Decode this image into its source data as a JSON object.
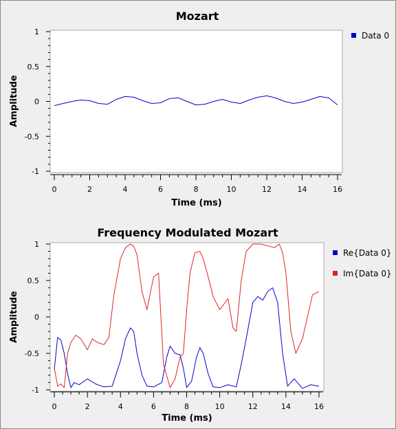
{
  "chart_data": [
    {
      "type": "line",
      "title": "Mozart",
      "xlabel": "Time (ms)",
      "ylabel": "Amplitude",
      "xlim": [
        0,
        16
      ],
      "ylim": [
        -1,
        1
      ],
      "x_ticks": [
        "0",
        "2",
        "4",
        "6",
        "8",
        "10",
        "12",
        "14",
        "16"
      ],
      "y_ticks": [
        "1",
        "0.5",
        "0",
        "-0.5",
        "-1"
      ],
      "legend_position": "right",
      "series": [
        {
          "name": "Data 0",
          "color": "#0000cc",
          "x": [
            0,
            0.5,
            1,
            1.5,
            2,
            2.5,
            3,
            3.5,
            4,
            4.5,
            5,
            5.5,
            6,
            6.5,
            7,
            7.5,
            8,
            8.5,
            9,
            9.5,
            10,
            10.5,
            11,
            11.5,
            12,
            12.5,
            13,
            13.5,
            14,
            14.5,
            15,
            15.5,
            16
          ],
          "y": [
            -0.06,
            -0.03,
            0.0,
            0.02,
            0.01,
            -0.03,
            -0.04,
            0.03,
            0.07,
            0.06,
            0.01,
            -0.03,
            -0.02,
            0.04,
            0.05,
            0.0,
            -0.05,
            -0.04,
            0.0,
            0.03,
            -0.01,
            -0.03,
            0.02,
            0.06,
            0.08,
            0.05,
            0.0,
            -0.03,
            -0.01,
            0.03,
            0.07,
            0.05,
            -0.05
          ]
        }
      ]
    },
    {
      "type": "line",
      "title": "Frequency Modulated Mozart",
      "xlabel": "Time (ms)",
      "ylabel": "Amplitude",
      "xlim": [
        0,
        16
      ],
      "ylim": [
        -1,
        1
      ],
      "x_ticks": [
        "0",
        "2",
        "4",
        "6",
        "8",
        "10",
        "12",
        "14",
        "16"
      ],
      "y_ticks": [
        "1",
        "0.5",
        "0",
        "-0.5",
        "-1"
      ],
      "legend_position": "right",
      "series": [
        {
          "name": "Re{Data 0}",
          "color": "#0000cc",
          "x": [
            0,
            0.2,
            0.4,
            0.6,
            0.8,
            1.0,
            1.2,
            1.5,
            2.0,
            2.5,
            3.0,
            3.5,
            4.0,
            4.3,
            4.6,
            4.8,
            5.0,
            5.3,
            5.6,
            6.0,
            6.5,
            6.8,
            7.0,
            7.3,
            7.6,
            7.8,
            8.0,
            8.3,
            8.6,
            8.8,
            9.0,
            9.3,
            9.6,
            10.0,
            10.5,
            11.0,
            11.3,
            11.6,
            12.0,
            12.3,
            12.6,
            12.9,
            13.2,
            13.5,
            13.8,
            14.1,
            14.5,
            15.0,
            15.5,
            16.0
          ],
          "y": [
            -0.72,
            -0.28,
            -0.32,
            -0.5,
            -0.78,
            -0.97,
            -0.9,
            -0.93,
            -0.85,
            -0.92,
            -0.96,
            -0.95,
            -0.6,
            -0.3,
            -0.15,
            -0.2,
            -0.5,
            -0.8,
            -0.95,
            -0.96,
            -0.9,
            -0.55,
            -0.4,
            -0.5,
            -0.52,
            -0.7,
            -0.97,
            -0.88,
            -0.55,
            -0.42,
            -0.5,
            -0.78,
            -0.96,
            -0.97,
            -0.93,
            -0.96,
            -0.65,
            -0.3,
            0.2,
            0.28,
            0.23,
            0.35,
            0.4,
            0.2,
            -0.5,
            -0.95,
            -0.85,
            -0.98,
            -0.93,
            -0.95
          ]
        },
        {
          "name": "Im{Data 0}",
          "color": "#dd2222",
          "x": [
            0,
            0.2,
            0.4,
            0.6,
            0.8,
            1.0,
            1.3,
            1.6,
            2.0,
            2.3,
            2.6,
            3.0,
            3.3,
            3.6,
            4.0,
            4.3,
            4.6,
            4.8,
            5.0,
            5.3,
            5.6,
            6.0,
            6.3,
            6.6,
            7.0,
            7.3,
            7.6,
            7.8,
            8.0,
            8.2,
            8.5,
            8.8,
            9.0,
            9.3,
            9.6,
            10.0,
            10.5,
            10.8,
            11.0,
            11.3,
            11.6,
            12.0,
            12.5,
            13.0,
            13.3,
            13.6,
            13.8,
            14.0,
            14.3,
            14.6,
            15.0,
            15.3,
            15.6,
            16.0
          ],
          "y": [
            -0.7,
            -0.95,
            -0.92,
            -0.97,
            -0.5,
            -0.35,
            -0.25,
            -0.3,
            -0.45,
            -0.3,
            -0.35,
            -0.38,
            -0.28,
            0.3,
            0.8,
            0.95,
            1.0,
            0.97,
            0.85,
            0.35,
            0.1,
            0.55,
            0.6,
            -0.65,
            -0.97,
            -0.85,
            -0.55,
            -0.5,
            0.1,
            0.6,
            0.88,
            0.9,
            0.8,
            0.55,
            0.28,
            0.1,
            0.25,
            -0.15,
            -0.2,
            0.5,
            0.9,
            1.0,
            1.0,
            0.97,
            0.95,
            1.0,
            0.88,
            0.6,
            -0.2,
            -0.5,
            -0.3,
            0.0,
            0.3,
            0.35
          ]
        }
      ]
    }
  ]
}
